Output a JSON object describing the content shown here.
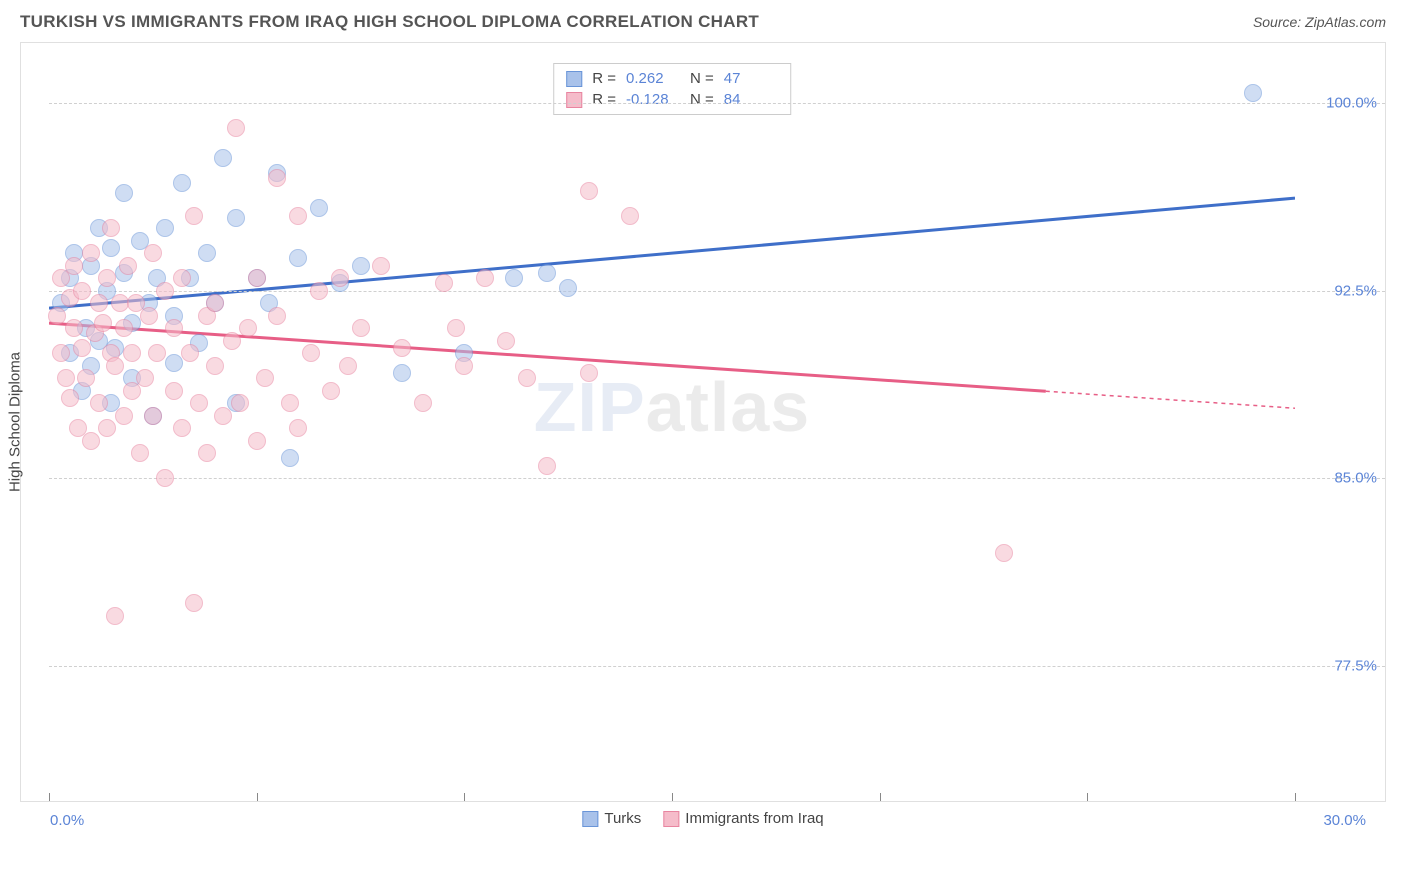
{
  "title": "TURKISH VS IMMIGRANTS FROM IRAQ HIGH SCHOOL DIPLOMA CORRELATION CHART",
  "source": "Source: ZipAtlas.com",
  "yaxis_title": "High School Diploma",
  "watermark_part1": "ZIP",
  "watermark_part2": "atlas",
  "chart": {
    "type": "scatter",
    "xlim": [
      0,
      30
    ],
    "ylim": [
      72.5,
      102
    ],
    "x_axis_min_label": "0.0%",
    "x_axis_max_label": "30.0%",
    "y_gridlines": [
      77.5,
      85.0,
      92.5,
      100.0
    ],
    "y_labels": [
      "77.5%",
      "85.0%",
      "92.5%",
      "100.0%"
    ],
    "x_ticks": [
      0,
      5,
      10,
      15,
      20,
      25,
      30
    ],
    "background_color": "#ffffff",
    "grid_color": "#d0d0d0",
    "axis_label_color": "#5b84d6",
    "marker_radius": 9,
    "marker_opacity": 0.55,
    "series": [
      {
        "name": "Turks",
        "color_fill": "#a9c2ea",
        "color_stroke": "#6a95d8",
        "R": "0.262",
        "N": "47",
        "trend": {
          "x1": 0,
          "y1": 91.8,
          "x2": 30,
          "y2": 96.2,
          "color": "#3f6fc9",
          "width": 3,
          "dash_after_x": 30
        },
        "points": [
          [
            0.3,
            92.0
          ],
          [
            0.5,
            93.0
          ],
          [
            0.5,
            90.0
          ],
          [
            0.6,
            94.0
          ],
          [
            0.8,
            88.5
          ],
          [
            0.9,
            91.0
          ],
          [
            1.0,
            93.5
          ],
          [
            1.0,
            89.5
          ],
          [
            1.2,
            95.0
          ],
          [
            1.2,
            90.5
          ],
          [
            1.4,
            92.5
          ],
          [
            1.5,
            94.2
          ],
          [
            1.5,
            88.0
          ],
          [
            1.6,
            90.2
          ],
          [
            1.8,
            93.2
          ],
          [
            1.8,
            96.4
          ],
          [
            2.0,
            91.2
          ],
          [
            2.0,
            89.0
          ],
          [
            2.2,
            94.5
          ],
          [
            2.4,
            92.0
          ],
          [
            2.5,
            87.5
          ],
          [
            2.6,
            93.0
          ],
          [
            2.8,
            95.0
          ],
          [
            3.0,
            91.5
          ],
          [
            3.0,
            89.6
          ],
          [
            3.2,
            96.8
          ],
          [
            3.4,
            93.0
          ],
          [
            3.6,
            90.4
          ],
          [
            3.8,
            94.0
          ],
          [
            4.0,
            92.0
          ],
          [
            4.2,
            97.8
          ],
          [
            4.5,
            95.4
          ],
          [
            4.5,
            88.0
          ],
          [
            5.0,
            93.0
          ],
          [
            5.3,
            92.0
          ],
          [
            5.5,
            97.2
          ],
          [
            5.8,
            85.8
          ],
          [
            6.0,
            93.8
          ],
          [
            6.5,
            95.8
          ],
          [
            7.0,
            92.8
          ],
          [
            7.5,
            93.5
          ],
          [
            8.5,
            89.2
          ],
          [
            10.0,
            90.0
          ],
          [
            11.2,
            93.0
          ],
          [
            12.0,
            93.2
          ],
          [
            12.5,
            92.6
          ],
          [
            29.0,
            100.4
          ]
        ]
      },
      {
        "name": "Immigrants from Iraq",
        "color_fill": "#f5bcca",
        "color_stroke": "#e885a0",
        "R": "-0.128",
        "N": "84",
        "trend": {
          "x1": 0,
          "y1": 91.2,
          "x2": 30,
          "y2": 87.8,
          "color": "#e75e86",
          "width": 3,
          "dash_after_x": 24
        },
        "points": [
          [
            0.2,
            91.5
          ],
          [
            0.3,
            90.0
          ],
          [
            0.3,
            93.0
          ],
          [
            0.4,
            89.0
          ],
          [
            0.5,
            92.2
          ],
          [
            0.5,
            88.2
          ],
          [
            0.6,
            91.0
          ],
          [
            0.6,
            93.5
          ],
          [
            0.7,
            87.0
          ],
          [
            0.8,
            90.2
          ],
          [
            0.8,
            92.5
          ],
          [
            0.9,
            89.0
          ],
          [
            1.0,
            94.0
          ],
          [
            1.0,
            86.5
          ],
          [
            1.1,
            90.8
          ],
          [
            1.2,
            92.0
          ],
          [
            1.2,
            88.0
          ],
          [
            1.3,
            91.2
          ],
          [
            1.4,
            93.0
          ],
          [
            1.4,
            87.0
          ],
          [
            1.5,
            90.0
          ],
          [
            1.5,
            95.0
          ],
          [
            1.6,
            89.5
          ],
          [
            1.7,
            92.0
          ],
          [
            1.8,
            87.5
          ],
          [
            1.8,
            91.0
          ],
          [
            1.9,
            93.5
          ],
          [
            2.0,
            88.5
          ],
          [
            2.0,
            90.0
          ],
          [
            2.1,
            92.0
          ],
          [
            2.2,
            86.0
          ],
          [
            2.3,
            89.0
          ],
          [
            2.4,
            91.5
          ],
          [
            2.5,
            94.0
          ],
          [
            2.5,
            87.5
          ],
          [
            2.6,
            90.0
          ],
          [
            2.8,
            92.5
          ],
          [
            2.8,
            85.0
          ],
          [
            3.0,
            88.5
          ],
          [
            3.0,
            91.0
          ],
          [
            3.2,
            93.0
          ],
          [
            3.2,
            87.0
          ],
          [
            3.4,
            90.0
          ],
          [
            3.5,
            95.5
          ],
          [
            3.6,
            88.0
          ],
          [
            3.8,
            91.5
          ],
          [
            3.8,
            86.0
          ],
          [
            4.0,
            89.5
          ],
          [
            4.0,
            92.0
          ],
          [
            4.2,
            87.5
          ],
          [
            4.4,
            90.5
          ],
          [
            4.5,
            99.0
          ],
          [
            4.6,
            88.0
          ],
          [
            4.8,
            91.0
          ],
          [
            5.0,
            86.5
          ],
          [
            5.0,
            93.0
          ],
          [
            5.2,
            89.0
          ],
          [
            5.5,
            91.5
          ],
          [
            5.5,
            97.0
          ],
          [
            5.8,
            88.0
          ],
          [
            6.0,
            95.5
          ],
          [
            6.0,
            87.0
          ],
          [
            6.3,
            90.0
          ],
          [
            6.5,
            92.5
          ],
          [
            6.8,
            88.5
          ],
          [
            7.0,
            93.0
          ],
          [
            7.2,
            89.5
          ],
          [
            7.5,
            91.0
          ],
          [
            8.0,
            93.5
          ],
          [
            8.5,
            90.2
          ],
          [
            9.0,
            88.0
          ],
          [
            9.5,
            92.8
          ],
          [
            9.8,
            91.0
          ],
          [
            10.0,
            89.5
          ],
          [
            10.5,
            93.0
          ],
          [
            11.0,
            90.5
          ],
          [
            11.5,
            89.0
          ],
          [
            12.0,
            85.5
          ],
          [
            13.0,
            96.5
          ],
          [
            13.0,
            89.2
          ],
          [
            14.0,
            95.5
          ],
          [
            1.6,
            79.5
          ],
          [
            3.5,
            80.0
          ],
          [
            23.0,
            82.0
          ]
        ]
      }
    ],
    "legend_bottom": [
      {
        "label": "Turks",
        "fill": "#a9c2ea",
        "stroke": "#6a95d8"
      },
      {
        "label": "Immigrants from Iraq",
        "fill": "#f5bcca",
        "stroke": "#e885a0"
      }
    ]
  }
}
